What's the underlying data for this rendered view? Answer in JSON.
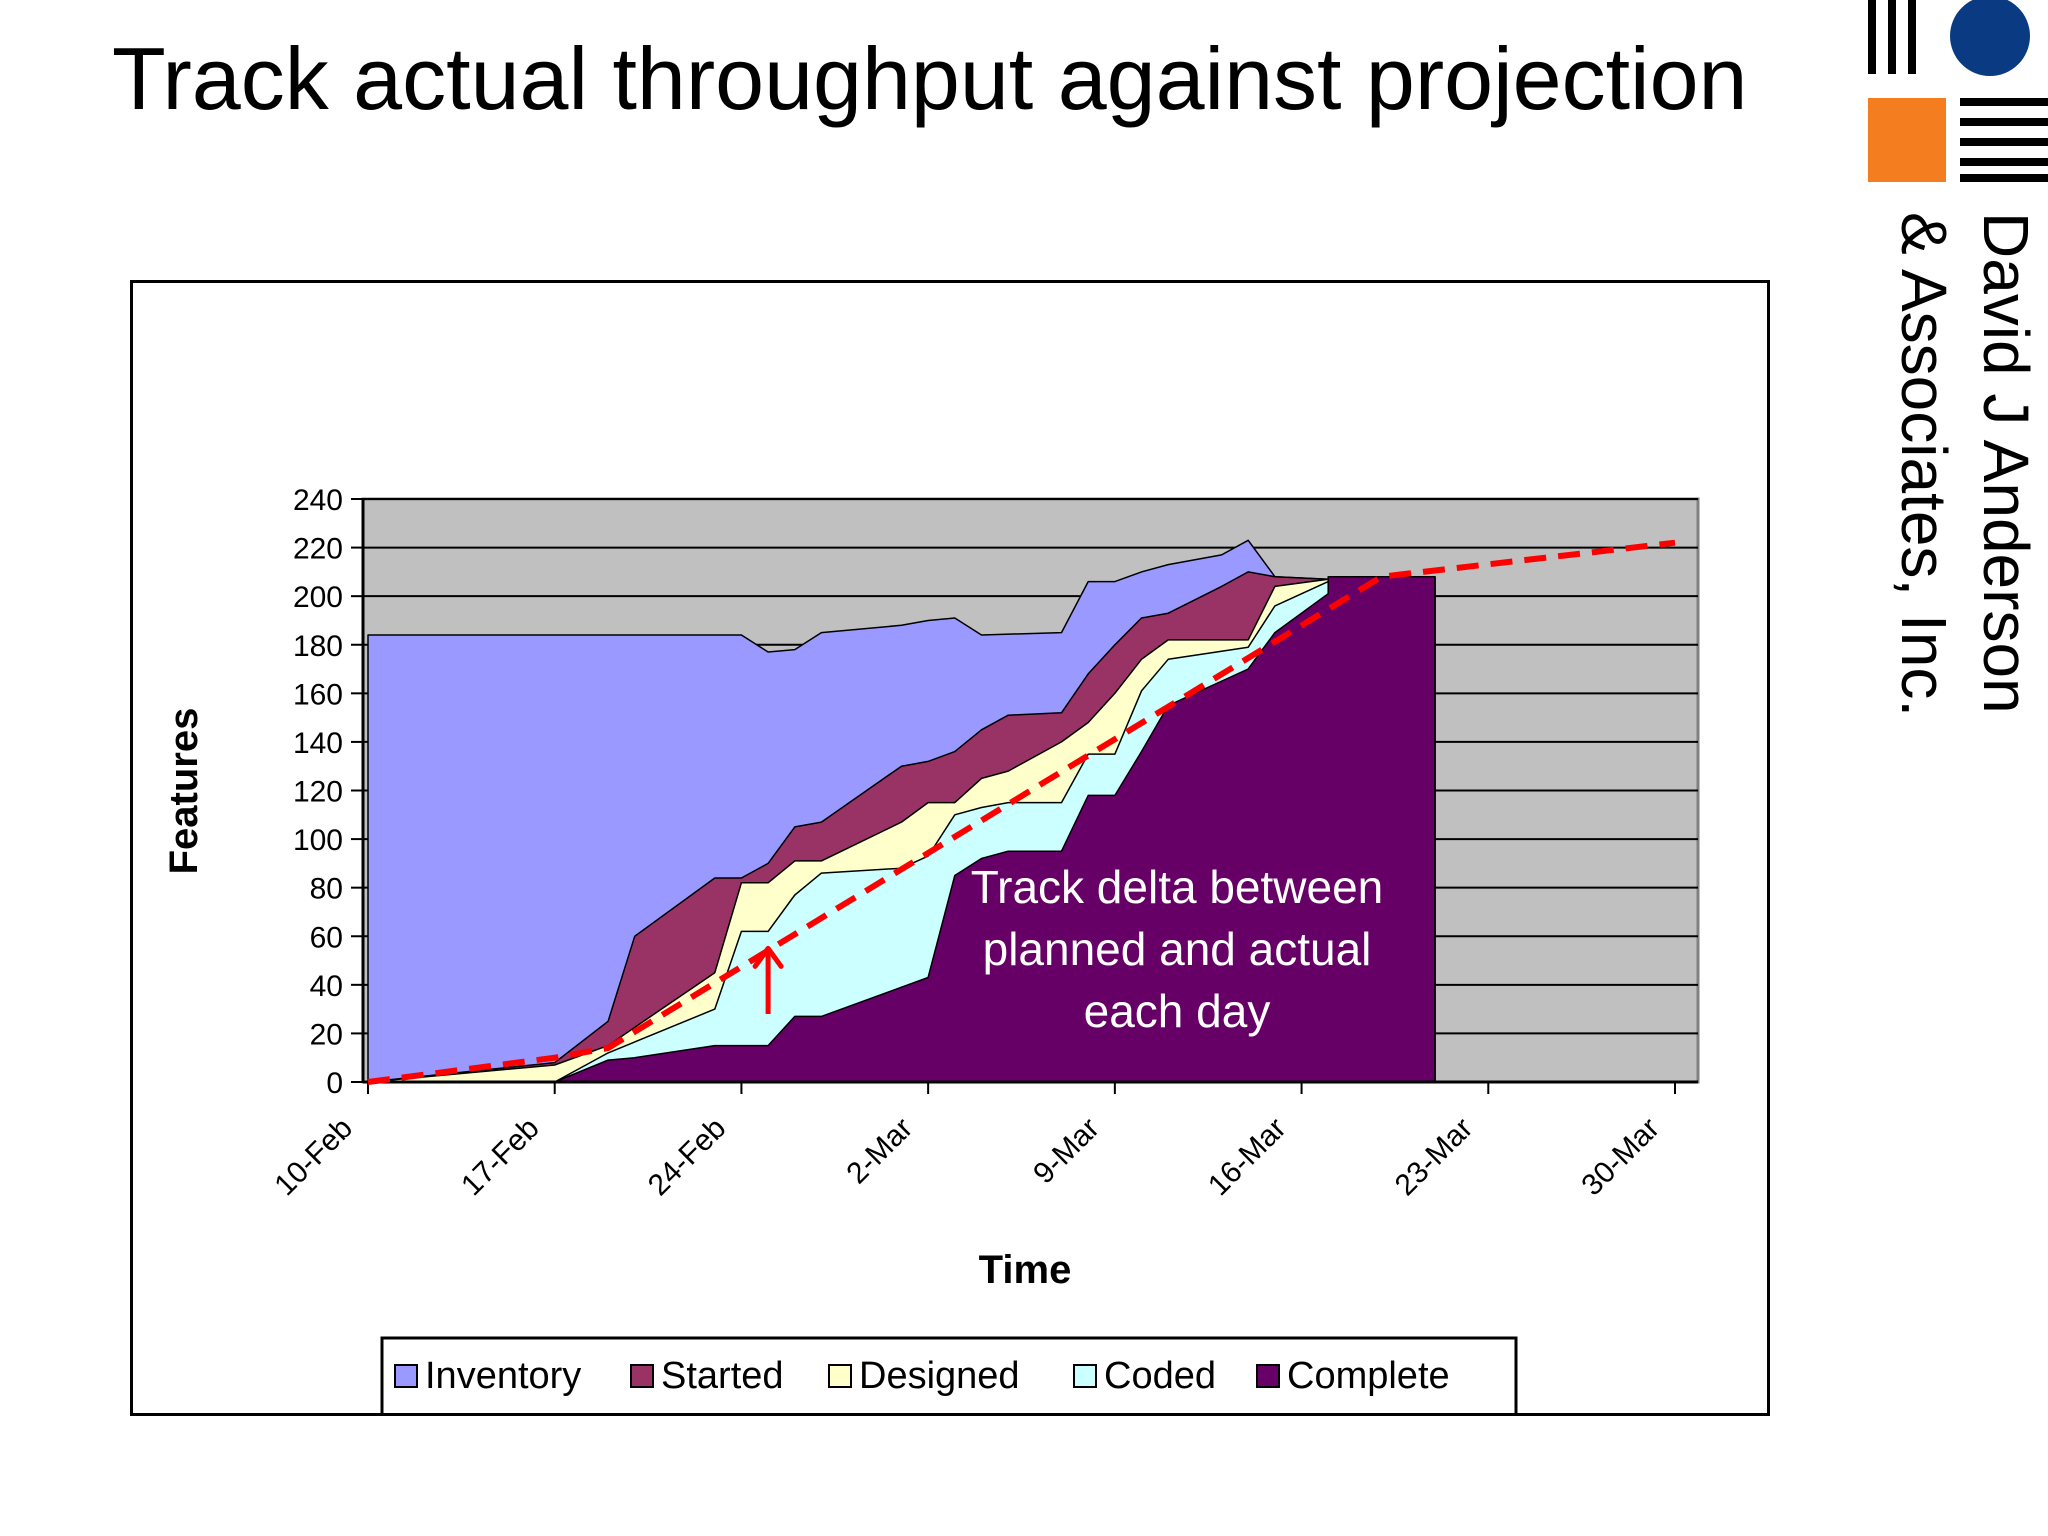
{
  "title": "Track actual throughput against projection",
  "logo": {
    "line1": "David J Anderson",
    "line2": "& Associates, Inc.",
    "circle_color": "#0a3a82",
    "square_color": "#f47d20"
  },
  "chart_data": {
    "type": "area",
    "stacked": true,
    "xlabel": "Time",
    "ylabel": "Features",
    "ylim": [
      0,
      240
    ],
    "yticks": [
      0,
      20,
      40,
      60,
      80,
      100,
      120,
      140,
      160,
      180,
      200,
      220,
      240
    ],
    "xlim": [
      "10-Feb",
      "30-Mar"
    ],
    "xticks": [
      "10-Feb",
      "17-Feb",
      "24-Feb",
      "2-Mar",
      "9-Mar",
      "16-Mar",
      "23-Mar",
      "30-Mar"
    ],
    "grid": true,
    "plot_background": "#c0c0c0",
    "legend_position": "bottom",
    "series": [
      {
        "name": "Inventory",
        "color": "#9999ff",
        "points": [
          [
            "10-Feb",
            184
          ],
          [
            "19-Feb",
            184
          ],
          [
            "22-Feb",
            184
          ],
          [
            "24-Feb",
            184
          ],
          [
            "25-Feb",
            177
          ],
          [
            "26-Feb",
            178
          ],
          [
            "27-Feb",
            185
          ],
          [
            "1-Mar",
            188
          ],
          [
            "2-Mar",
            190
          ],
          [
            "3-Mar",
            191
          ],
          [
            "4-Mar",
            184
          ],
          [
            "7-Mar",
            185
          ],
          [
            "8-Mar",
            206
          ],
          [
            "9-Mar",
            206
          ],
          [
            "10-Mar",
            210
          ],
          [
            "11-Mar",
            213
          ],
          [
            "13-Mar",
            217
          ],
          [
            "14-Mar",
            223
          ],
          [
            "15-Mar",
            208
          ],
          [
            "17-Mar",
            207
          ],
          [
            "20-Mar",
            208
          ],
          [
            "21-Mar",
            208
          ]
        ]
      },
      {
        "name": "Started",
        "color": "#993366",
        "points": [
          [
            "10-Feb",
            0
          ],
          [
            "17-Feb",
            8
          ],
          [
            "19-Feb",
            25
          ],
          [
            "20-Feb",
            60
          ],
          [
            "23-Feb",
            84
          ],
          [
            "24-Feb",
            84
          ],
          [
            "25-Feb",
            90
          ],
          [
            "26-Feb",
            105
          ],
          [
            "27-Feb",
            107
          ],
          [
            "1-Mar",
            130
          ],
          [
            "2-Mar",
            132
          ],
          [
            "3-Mar",
            136
          ],
          [
            "4-Mar",
            145
          ],
          [
            "5-Mar",
            151
          ],
          [
            "7-Mar",
            152
          ],
          [
            "8-Mar",
            168
          ],
          [
            "9-Mar",
            180
          ],
          [
            "10-Mar",
            191
          ],
          [
            "11-Mar",
            193
          ],
          [
            "13-Mar",
            204
          ],
          [
            "14-Mar",
            210
          ],
          [
            "15-Mar",
            208
          ],
          [
            "17-Mar",
            207
          ],
          [
            "20-Mar",
            208
          ],
          [
            "21-Mar",
            208
          ]
        ]
      },
      {
        "name": "Designed",
        "color": "#ffffcc",
        "points": [
          [
            "10-Feb",
            0
          ],
          [
            "17-Feb",
            7
          ],
          [
            "19-Feb",
            15
          ],
          [
            "21-Feb",
            30
          ],
          [
            "23-Feb",
            45
          ],
          [
            "24-Feb",
            82
          ],
          [
            "25-Feb",
            82
          ],
          [
            "26-Feb",
            91
          ],
          [
            "27-Feb",
            91
          ],
          [
            "1-Mar",
            107
          ],
          [
            "2-Mar",
            115
          ],
          [
            "3-Mar",
            115
          ],
          [
            "4-Mar",
            125
          ],
          [
            "5-Mar",
            128
          ],
          [
            "7-Mar",
            140
          ],
          [
            "8-Mar",
            148
          ],
          [
            "9-Mar",
            160
          ],
          [
            "10-Mar",
            174
          ],
          [
            "11-Mar",
            182
          ],
          [
            "14-Mar",
            182
          ],
          [
            "15-Mar",
            204
          ],
          [
            "17-Mar",
            207
          ],
          [
            "20-Mar",
            208
          ],
          [
            "21-Mar",
            208
          ]
        ]
      },
      {
        "name": "Coded",
        "color": "#ccffff",
        "points": [
          [
            "10-Feb",
            0
          ],
          [
            "17-Feb",
            0
          ],
          [
            "19-Feb",
            12
          ],
          [
            "23-Feb",
            30
          ],
          [
            "24-Feb",
            62
          ],
          [
            "25-Feb",
            62
          ],
          [
            "26-Feb",
            77
          ],
          [
            "27-Feb",
            86
          ],
          [
            "1-Mar",
            88
          ],
          [
            "2-Mar",
            93
          ],
          [
            "3-Mar",
            110
          ],
          [
            "4-Mar",
            113
          ],
          [
            "5-Mar",
            115
          ],
          [
            "7-Mar",
            115
          ],
          [
            "8-Mar",
            135
          ],
          [
            "9-Mar",
            135
          ],
          [
            "10-Mar",
            161
          ],
          [
            "11-Mar",
            174
          ],
          [
            "14-Mar",
            179
          ],
          [
            "15-Mar",
            196
          ],
          [
            "17-Mar",
            206
          ],
          [
            "20-Mar",
            208
          ],
          [
            "21-Mar",
            208
          ]
        ]
      },
      {
        "name": "Complete",
        "color": "#660066",
        "points": [
          [
            "10-Feb",
            0
          ],
          [
            "17-Feb",
            0
          ],
          [
            "19-Feb",
            9
          ],
          [
            "20-Feb",
            10
          ],
          [
            "23-Feb",
            15
          ],
          [
            "25-Feb",
            15
          ],
          [
            "26-Feb",
            27
          ],
          [
            "27-Feb",
            27
          ],
          [
            "2-Mar",
            43
          ],
          [
            "3-Mar",
            85
          ],
          [
            "4-Mar",
            92
          ],
          [
            "5-Mar",
            95
          ],
          [
            "7-Mar",
            95
          ],
          [
            "8-Mar",
            118
          ],
          [
            "9-Mar",
            118
          ],
          [
            "10-Mar",
            136
          ],
          [
            "11-Mar",
            155
          ],
          [
            "14-Mar",
            170
          ],
          [
            "15-Mar",
            185
          ],
          [
            "17-Mar",
            201
          ],
          [
            "17-Mar",
            208
          ],
          [
            "21-Mar",
            208
          ]
        ]
      }
    ],
    "projection": {
      "color": "#ff0000",
      "style": "dashed",
      "points": [
        [
          "10-Feb",
          0
        ],
        [
          "17-Feb",
          10
        ],
        [
          "19-Feb",
          14
        ],
        [
          "19-Mar",
          208
        ],
        [
          "30-Mar",
          222
        ]
      ]
    },
    "delta_arrow": {
      "date": "25-Feb",
      "from": 28,
      "to": 55,
      "color": "#ff0000"
    },
    "annotation": {
      "text": [
        "Track delta between",
        "planned and actual",
        "each day"
      ],
      "color": "#ffffff"
    }
  }
}
